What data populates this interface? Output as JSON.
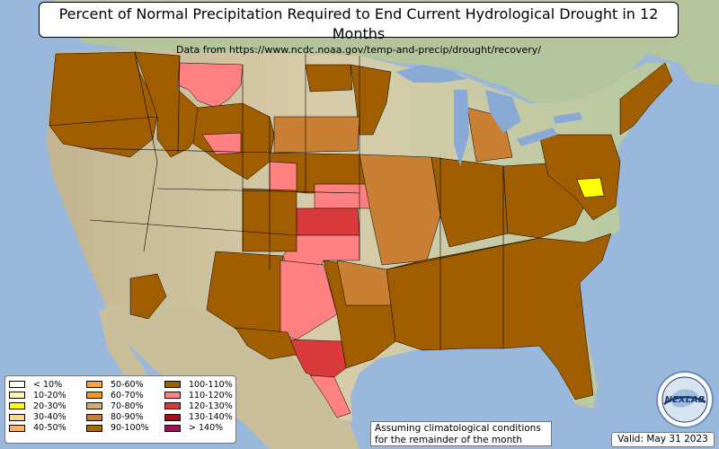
{
  "title": "Percent of Normal Precipitation Required to End Current Hydrological Drought in 12 Months",
  "subtitle": "Data from https://www.ncdc.noaa.gov/temp-and-precip/drought/recovery/",
  "legend": [
    {
      "label": "< 10%",
      "color": "#fffff0"
    },
    {
      "label": "10-20%",
      "color": "#fff3b0"
    },
    {
      "label": "20-30%",
      "color": "#ffff00"
    },
    {
      "label": "30-40%",
      "color": "#ffd98f"
    },
    {
      "label": "40-50%",
      "color": "#ffb15c"
    },
    {
      "label": "50-60%",
      "color": "#f7a63c"
    },
    {
      "label": "60-70%",
      "color": "#f29a1e"
    },
    {
      "label": "70-80%",
      "color": "#d9a877"
    },
    {
      "label": "80-90%",
      "color": "#c98035"
    },
    {
      "label": "90-100%",
      "color": "#a86b00"
    },
    {
      "label": "100-110%",
      "color": "#a05e00"
    },
    {
      "label": "110-120%",
      "color": "#ff8080"
    },
    {
      "label": "120-130%",
      "color": "#d93b3b"
    },
    {
      "label": "130-140%",
      "color": "#a0101c"
    },
    {
      "label": "> 140%",
      "color": "#a0105a"
    }
  ],
  "note_lines": [
    "Assuming climatological conditions",
    "for the remainder of the month"
  ],
  "valid": "Valid: May 31 2023",
  "colors": {
    "ocean": "#9ab7dc",
    "land_green": "#b6c9a2",
    "land_tan": "#d6cba8",
    "lakes": "#8aaad6",
    "drought_100_110": "#a05e00",
    "drought_80_90": "#c98035",
    "drought_110_120": "#ff8080",
    "drought_120_130": "#d93b3b",
    "drought_20_30": "#ffff00"
  },
  "logo": {
    "icon": "nexlab-globe-logo",
    "text": "NEXLAB"
  }
}
